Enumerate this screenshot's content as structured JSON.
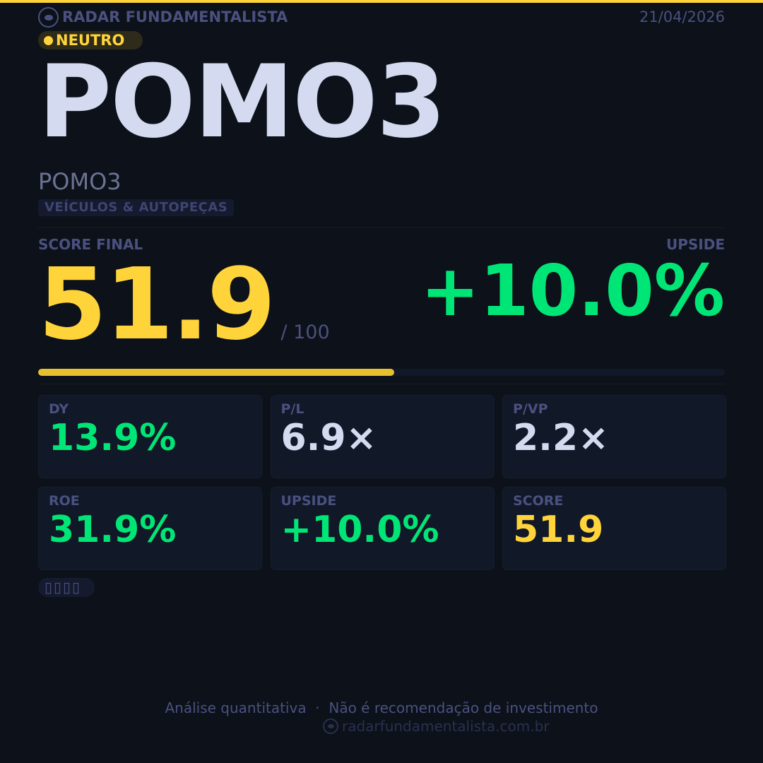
{
  "brand": {
    "name": "RADAR FUNDAMENTALISTA",
    "date": "21/04/2026"
  },
  "badge": {
    "label": "NEUTRO",
    "color": "#ffd43b"
  },
  "ticker": "POMO3",
  "company_name": "POMO3",
  "sector": "VEÍCULOS & AUTOPEÇAS",
  "score": {
    "label": "SCORE FINAL",
    "value": "51.9",
    "of": "/ 100",
    "progress_percent": 51.9
  },
  "upside": {
    "label": "UPSIDE",
    "value": "+10.0%"
  },
  "metrics": [
    {
      "label": "DY",
      "value": "13.9%",
      "color": "#00e676"
    },
    {
      "label": "P/L",
      "value": "6.9×",
      "color": "#d4dbf0"
    },
    {
      "label": "P/VP",
      "value": "2.2×",
      "color": "#d4dbf0"
    },
    {
      "label": "ROE",
      "value": "31.9%",
      "color": "#00e676"
    },
    {
      "label": "UPSIDE",
      "value": "+10.0%",
      "color": "#00e676"
    },
    {
      "label": "SCORE",
      "value": "51.9",
      "color": "#ffd43b"
    }
  ],
  "emoji_tags": "▯▯▯▯",
  "footer": {
    "disclaimer": "Análise quantitativa  ·  Não é recomendação de investimento",
    "site": "radarfundamentalista.com.br"
  }
}
